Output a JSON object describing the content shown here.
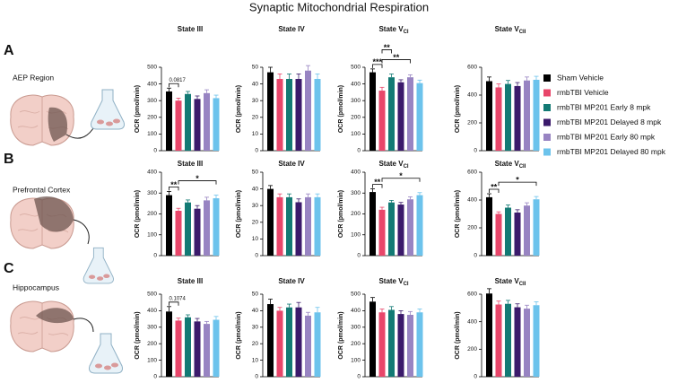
{
  "title": "Synaptic Mitochondrial Respiration",
  "panels": [
    {
      "letter": "A",
      "region": "AEP Region"
    },
    {
      "letter": "B",
      "region": "Prefrontal Cortex"
    },
    {
      "letter": "C",
      "region": "Hippocampus"
    }
  ],
  "legend": [
    {
      "name": "Sham Vehicle",
      "color": "#000000"
    },
    {
      "name": "rmbTBI Vehicle",
      "color": "#e8466a"
    },
    {
      "name": "rmbTBI MP201 Early 8 mpk",
      "color": "#137a74"
    },
    {
      "name": "rmbTBI MP201 Delayed 8 mpk",
      "color": "#3b1a6b"
    },
    {
      "name": "rmbTBI MP201 Early 80 mpk",
      "color": "#9884c2"
    },
    {
      "name": "rmbTBI MP201 Delayed 80 mpk",
      "color": "#6cc3ec"
    }
  ],
  "chart_data": [
    {
      "type": "bar",
      "title": "State III",
      "ylabel": "OCR (pmol/min)",
      "values": [
        355,
        300,
        340,
        310,
        345,
        315
      ],
      "errors": [
        20,
        15,
        15,
        18,
        20,
        18
      ],
      "ylim": [
        0,
        500
      ],
      "yticks": [
        0,
        100,
        200,
        300,
        400,
        500
      ],
      "annotations": [
        {
          "text": "0.0817",
          "from": 0,
          "to": 1
        }
      ]
    },
    {
      "type": "bar",
      "title": "State IV",
      "ylabel": "OCR (pmol/min)",
      "values": [
        47,
        43,
        43,
        43,
        48,
        43
      ],
      "errors": [
        3,
        3,
        3,
        3,
        3,
        3
      ],
      "ylim": [
        0,
        50
      ],
      "yticks": [
        0,
        10,
        20,
        30,
        40,
        50
      ],
      "annotations": []
    },
    {
      "type": "bar",
      "title": "State V",
      "title_sub": "CI",
      "ylabel": "OCR (pmol/min)",
      "values": [
        470,
        360,
        440,
        410,
        440,
        405
      ],
      "errors": [
        20,
        20,
        20,
        15,
        15,
        18
      ],
      "ylim": [
        0,
        500
      ],
      "yticks": [
        0,
        100,
        200,
        300,
        400,
        500
      ],
      "annotations": [
        {
          "text": "***",
          "from": 0,
          "to": 1
        },
        {
          "text": "**",
          "from": 1,
          "to": 4
        },
        {
          "text": "**",
          "from": 1,
          "to": 2
        }
      ]
    },
    {
      "type": "bar",
      "title": "State V",
      "title_sub": "CII",
      "ylabel": "OCR (pmol/min)",
      "values": [
        500,
        455,
        480,
        465,
        505,
        510
      ],
      "errors": [
        30,
        25,
        25,
        25,
        25,
        25
      ],
      "ylim": [
        0,
        600
      ],
      "yticks": [
        0,
        200,
        400,
        600
      ],
      "annotations": []
    },
    {
      "type": "bar",
      "title": "State III",
      "ylabel": "OCR (pmol/min)",
      "values": [
        290,
        215,
        255,
        225,
        265,
        275
      ],
      "errors": [
        18,
        12,
        12,
        15,
        15,
        15
      ],
      "ylim": [
        0,
        400
      ],
      "yticks": [
        0,
        100,
        200,
        300,
        400
      ],
      "annotations": [
        {
          "text": "**",
          "from": 0,
          "to": 1
        },
        {
          "text": "*",
          "from": 1,
          "to": 5
        }
      ]
    },
    {
      "type": "bar",
      "title": "State IV",
      "ylabel": "OCR (pmol/min)",
      "values": [
        40,
        35,
        35,
        32,
        35,
        35
      ],
      "errors": [
        2,
        2,
        2,
        2,
        2,
        2
      ],
      "ylim": [
        0,
        50
      ],
      "yticks": [
        0,
        10,
        20,
        30,
        40,
        50
      ],
      "annotations": []
    },
    {
      "type": "bar",
      "title": "State V",
      "title_sub": "CI",
      "ylabel": "OCR (pmol/min)",
      "values": [
        305,
        220,
        255,
        245,
        270,
        290
      ],
      "errors": [
        15,
        12,
        10,
        10,
        12,
        12
      ],
      "ylim": [
        0,
        400
      ],
      "yticks": [
        0,
        100,
        200,
        300,
        400
      ],
      "annotations": [
        {
          "text": "**",
          "from": 0,
          "to": 1
        },
        {
          "text": "*",
          "from": 1,
          "to": 5
        }
      ]
    },
    {
      "type": "bar",
      "title": "State V",
      "title_sub": "CII",
      "ylabel": "OCR (pmol/min)",
      "values": [
        420,
        300,
        345,
        310,
        360,
        405
      ],
      "errors": [
        25,
        15,
        20,
        20,
        20,
        20
      ],
      "ylim": [
        0,
        600
      ],
      "yticks": [
        0,
        200,
        400,
        600
      ],
      "annotations": [
        {
          "text": "**",
          "from": 0,
          "to": 1
        },
        {
          "text": "*",
          "from": 1,
          "to": 5
        }
      ]
    },
    {
      "type": "bar",
      "title": "State III",
      "ylabel": "OCR (pmol/min)",
      "values": [
        395,
        340,
        360,
        335,
        320,
        345
      ],
      "errors": [
        30,
        15,
        15,
        18,
        15,
        20
      ],
      "ylim": [
        0,
        500
      ],
      "yticks": [
        0,
        100,
        200,
        300,
        400,
        500
      ],
      "annotations": [
        {
          "text": "0.1074",
          "from": 0,
          "to": 1
        }
      ]
    },
    {
      "type": "bar",
      "title": "State IV",
      "ylabel": "OCR (pmol/min)",
      "values": [
        44,
        40,
        42,
        42,
        37,
        39
      ],
      "errors": [
        3,
        2,
        2,
        3,
        2,
        3
      ],
      "ylim": [
        0,
        50
      ],
      "yticks": [
        0,
        10,
        20,
        30,
        40,
        50
      ],
      "annotations": []
    },
    {
      "type": "bar",
      "title": "State V",
      "title_sub": "CI",
      "ylabel": "OCR (pmol/min)",
      "values": [
        455,
        390,
        405,
        380,
        375,
        390
      ],
      "errors": [
        25,
        20,
        20,
        20,
        20,
        20
      ],
      "ylim": [
        0,
        500
      ],
      "yticks": [
        0,
        100,
        200,
        300,
        400,
        500
      ],
      "annotations": []
    },
    {
      "type": "bar",
      "title": "State V",
      "title_sub": "CII",
      "ylabel": "OCR (pmol/min)",
      "values": [
        605,
        525,
        530,
        505,
        495,
        520
      ],
      "errors": [
        35,
        25,
        25,
        25,
        25,
        25
      ],
      "ylim": [
        0,
        600
      ],
      "yticks": [
        0,
        200,
        400,
        600
      ],
      "annotations": []
    }
  ]
}
